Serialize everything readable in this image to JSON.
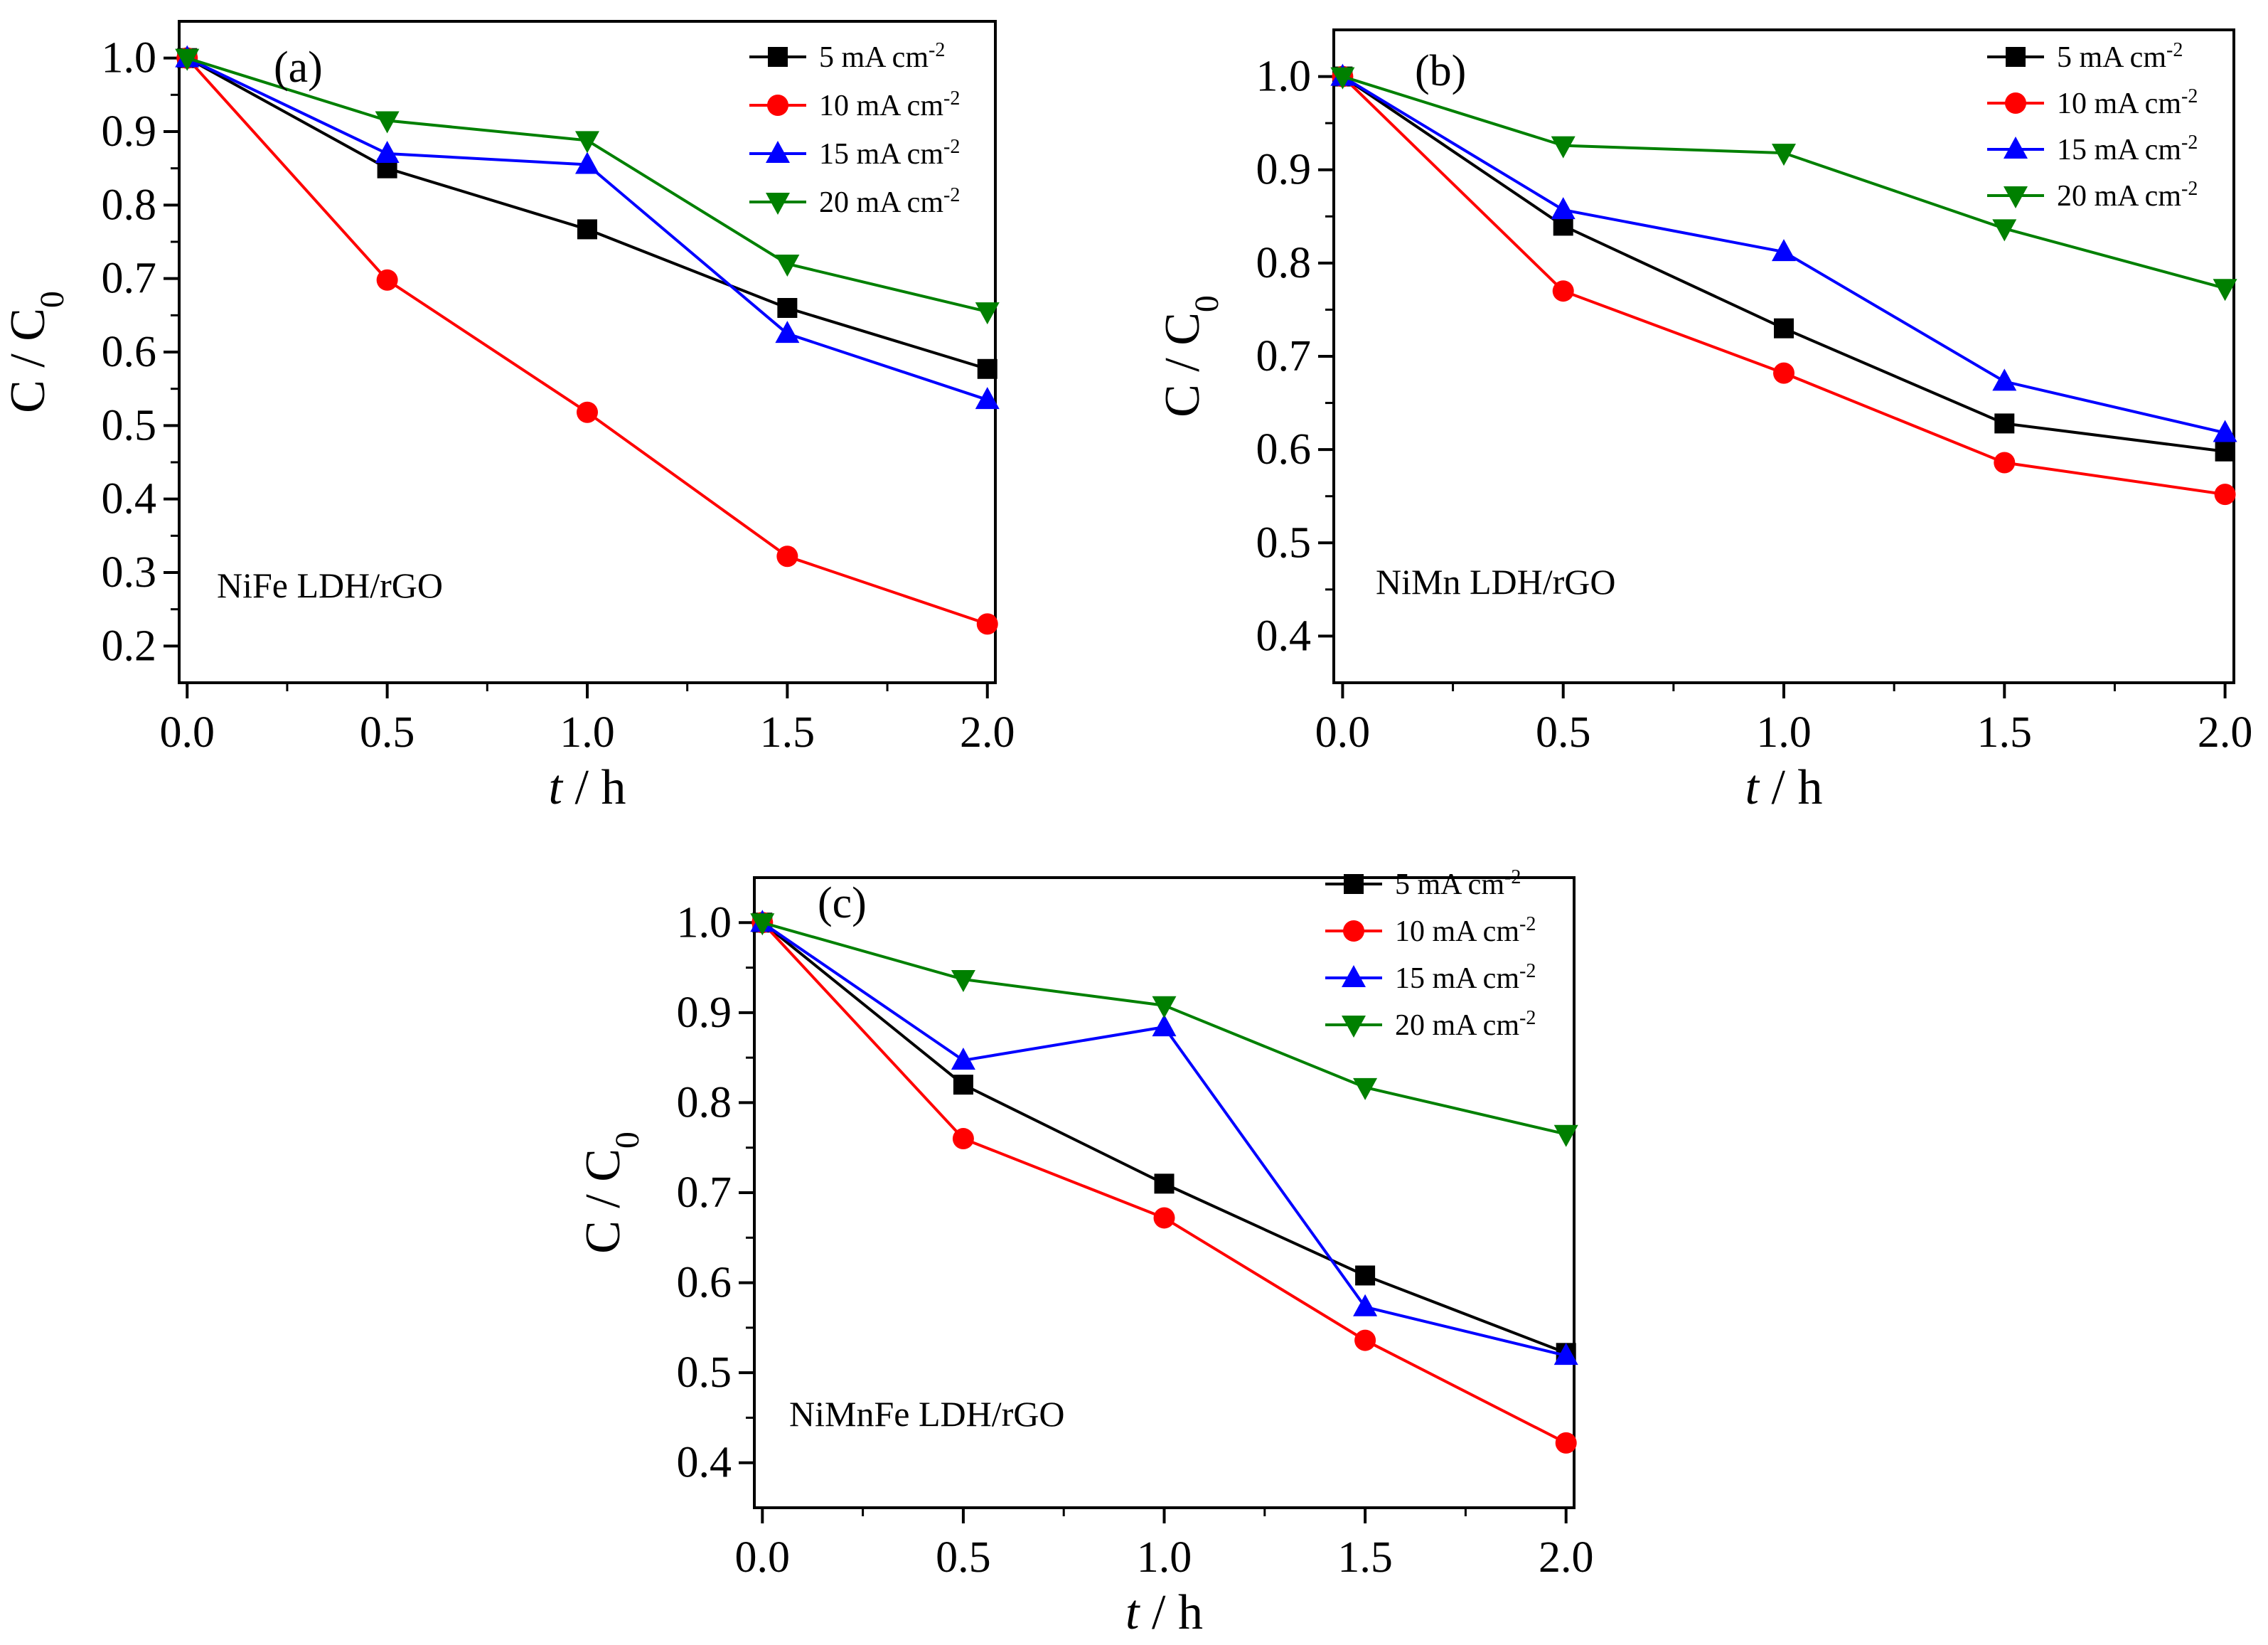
{
  "chart_data": [
    {
      "type": "line",
      "panel_label": "(a)",
      "sample_label": "NiFe LDH/rGO",
      "xlabel_italic": "t",
      "xlabel_rest": " / h",
      "ylabel_main": "C / C",
      "ylabel_sub": "0",
      "x": [
        0.0,
        0.5,
        1.0,
        1.5,
        2.0
      ],
      "xlim": [
        -0.02,
        2.02
      ],
      "ylim": [
        0.15,
        1.05
      ],
      "xticks": [
        0.0,
        0.5,
        1.0,
        1.5,
        2.0
      ],
      "yticks": [
        0.2,
        0.3,
        0.4,
        0.5,
        0.6,
        0.7,
        0.8,
        0.9,
        1.0
      ],
      "legend_position": "top-right",
      "series": [
        {
          "name": "5 mA cm",
          "superscript": "-2",
          "color": "#000000",
          "marker": "square",
          "values": [
            1.0,
            0.85,
            0.767,
            0.66,
            0.577
          ]
        },
        {
          "name": "10 mA cm",
          "superscript": "-2",
          "color": "#ff0000",
          "marker": "circle",
          "values": [
            1.0,
            0.698,
            0.518,
            0.322,
            0.23
          ]
        },
        {
          "name": "15 mA cm",
          "superscript": "-2",
          "color": "#0000ff",
          "marker": "triangle-up",
          "values": [
            1.0,
            0.87,
            0.855,
            0.625,
            0.535
          ]
        },
        {
          "name": "20 mA cm",
          "superscript": "-2",
          "color": "#008000",
          "marker": "triangle-down",
          "values": [
            1.0,
            0.915,
            0.888,
            0.72,
            0.655
          ]
        }
      ]
    },
    {
      "type": "line",
      "panel_label": "(b)",
      "sample_label": "NiMn LDH/rGO",
      "xlabel_italic": "t",
      "xlabel_rest": " / h",
      "ylabel_main": "C / C",
      "ylabel_sub": "0",
      "x": [
        0.0,
        0.5,
        1.0,
        1.5,
        2.0
      ],
      "xlim": [
        -0.02,
        2.02
      ],
      "ylim": [
        0.35,
        1.05
      ],
      "xticks": [
        0.0,
        0.5,
        1.0,
        1.5,
        2.0
      ],
      "yticks": [
        0.4,
        0.5,
        0.6,
        0.7,
        0.8,
        0.9,
        1.0
      ],
      "legend_position": "top-right",
      "series": [
        {
          "name": "5 mA cm",
          "superscript": "-2",
          "color": "#000000",
          "marker": "square",
          "values": [
            1.0,
            0.84,
            0.73,
            0.628,
            0.598
          ]
        },
        {
          "name": "10 mA cm",
          "superscript": "-2",
          "color": "#ff0000",
          "marker": "circle",
          "values": [
            1.0,
            0.77,
            0.682,
            0.586,
            0.552
          ]
        },
        {
          "name": "15 mA cm",
          "superscript": "-2",
          "color": "#0000ff",
          "marker": "triangle-up",
          "values": [
            1.0,
            0.857,
            0.812,
            0.673,
            0.618
          ]
        },
        {
          "name": "20 mA cm",
          "superscript": "-2",
          "color": "#008000",
          "marker": "triangle-down",
          "values": [
            1.0,
            0.926,
            0.918,
            0.837,
            0.773
          ]
        }
      ]
    },
    {
      "type": "line",
      "panel_label": "(c)",
      "sample_label": "NiMnFe LDH/rGO",
      "xlabel_italic": "t",
      "xlabel_rest": " / h",
      "ylabel_main": "C / C",
      "ylabel_sub": "0",
      "x": [
        0.0,
        0.5,
        1.0,
        1.5,
        2.0
      ],
      "xlim": [
        -0.02,
        2.02
      ],
      "ylim": [
        0.35,
        1.05
      ],
      "xticks": [
        0.0,
        0.5,
        1.0,
        1.5,
        2.0
      ],
      "yticks": [
        0.4,
        0.5,
        0.6,
        0.7,
        0.8,
        0.9,
        1.0
      ],
      "legend_position": "top-right",
      "series": [
        {
          "name": "5 mA cm",
          "superscript": "-2",
          "color": "#000000",
          "marker": "square",
          "values": [
            1.0,
            0.82,
            0.71,
            0.608,
            0.522
          ]
        },
        {
          "name": "10 mA cm",
          "superscript": "-2",
          "color": "#ff0000",
          "marker": "circle",
          "values": [
            1.0,
            0.76,
            0.672,
            0.536,
            0.422
          ]
        },
        {
          "name": "15 mA cm",
          "superscript": "-2",
          "color": "#0000ff",
          "marker": "triangle-up",
          "values": [
            1.0,
            0.847,
            0.884,
            0.573,
            0.519
          ]
        },
        {
          "name": "20 mA cm",
          "superscript": "-2",
          "color": "#008000",
          "marker": "triangle-down",
          "values": [
            1.0,
            0.937,
            0.908,
            0.817,
            0.765
          ]
        }
      ]
    }
  ]
}
